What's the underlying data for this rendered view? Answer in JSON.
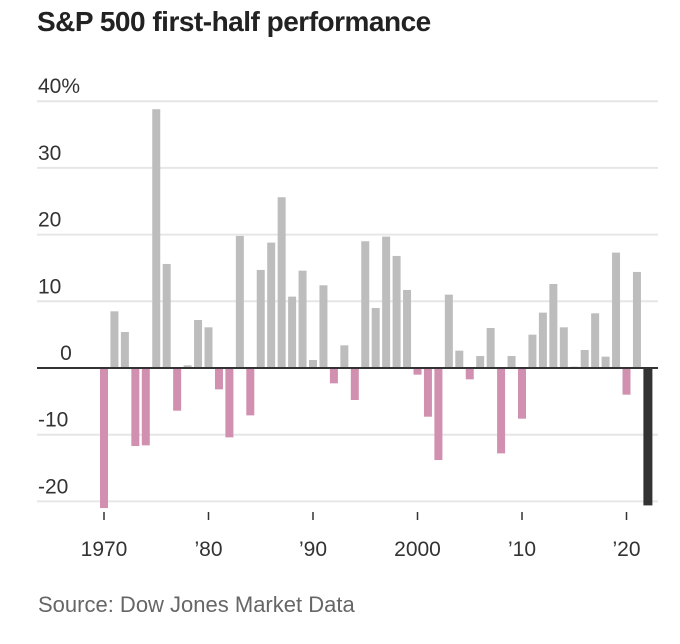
{
  "chart_data": {
    "type": "bar",
    "title": "S&P 500 first-half performance",
    "source": "Source: Dow Jones Market Data",
    "xlabel": "",
    "ylabel": "",
    "ylim": [
      -20,
      40
    ],
    "yticks": [
      {
        "value": 40,
        "label": "40%"
      },
      {
        "value": 30,
        "label": "30"
      },
      {
        "value": 20,
        "label": "20"
      },
      {
        "value": 10,
        "label": "10"
      },
      {
        "value": 0,
        "label": "0"
      },
      {
        "value": -10,
        "label": "-10"
      },
      {
        "value": -20,
        "label": "-20"
      }
    ],
    "xticks": [
      {
        "year": 1970,
        "label": "1970"
      },
      {
        "year": 1980,
        "label": "'80"
      },
      {
        "year": 1990,
        "label": "'90"
      },
      {
        "year": 2000,
        "label": "2000"
      },
      {
        "year": 2010,
        "label": "'10"
      },
      {
        "year": 2020,
        "label": "'20"
      }
    ],
    "grid": true,
    "colors": {
      "positive": "#bdbdbd",
      "negative": "#d190b0",
      "highlight": "#333333",
      "grid": "#e6e6e6",
      "zero_line": "#333333"
    },
    "highlight_year": 2022,
    "years": [
      1970,
      1971,
      1972,
      1973,
      1974,
      1975,
      1976,
      1977,
      1978,
      1979,
      1980,
      1981,
      1982,
      1983,
      1984,
      1985,
      1986,
      1987,
      1988,
      1989,
      1990,
      1991,
      1992,
      1993,
      1994,
      1995,
      1996,
      1997,
      1998,
      1999,
      2000,
      2001,
      2002,
      2003,
      2004,
      2005,
      2006,
      2007,
      2008,
      2009,
      2010,
      2011,
      2012,
      2013,
      2014,
      2015,
      2016,
      2017,
      2018,
      2019,
      2020,
      2021,
      2022
    ],
    "values": [
      -21.0,
      8.5,
      5.4,
      -11.7,
      -11.6,
      38.8,
      15.6,
      -6.4,
      0.4,
      7.2,
      6.1,
      -3.2,
      -10.4,
      19.8,
      -7.1,
      14.7,
      18.8,
      25.6,
      10.7,
      14.6,
      1.2,
      12.4,
      -2.3,
      3.4,
      -4.8,
      19.0,
      9.0,
      19.7,
      16.8,
      11.7,
      -1.0,
      -7.3,
      -13.8,
      11.0,
      2.6,
      -1.7,
      1.8,
      6.0,
      -12.8,
      1.8,
      -7.6,
      5.0,
      8.3,
      12.6,
      6.1,
      0.2,
      2.7,
      8.2,
      1.7,
      17.3,
      -4.0,
      14.4,
      -20.6
    ]
  }
}
